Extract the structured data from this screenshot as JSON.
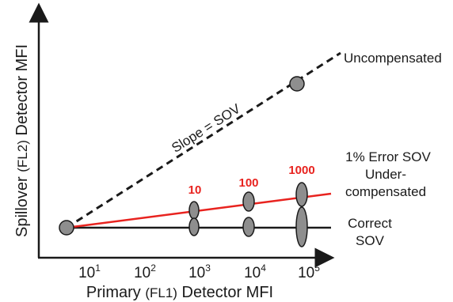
{
  "diagram": {
    "y_axis_label": {
      "part1": "Spillover ",
      "part2": "(FL2)",
      "part3": " Detector MFI"
    },
    "x_axis_label": {
      "part1": "Primary ",
      "part2": "(FL1)",
      "part3": " Detector MFI"
    },
    "x_ticks": [
      {
        "base": "10",
        "exp": "1"
      },
      {
        "base": "10",
        "exp": "2"
      },
      {
        "base": "10",
        "exp": "3"
      },
      {
        "base": "10",
        "exp": "4"
      },
      {
        "base": "10",
        "exp": "5"
      }
    ],
    "lines": {
      "uncompensated": "Uncompensated",
      "slope": "Slope = SOV",
      "error_title": "1% Error SOV",
      "error_sub1": "Under-",
      "error_sub2": "compensated",
      "correct1": "Correct",
      "correct2": "SOV"
    },
    "red_labels": [
      "10",
      "100",
      "1000"
    ],
    "colors": {
      "line_black": "#1a1a1a",
      "line_red": "#e8231f",
      "marker_fill": "#8e8e8e"
    }
  }
}
